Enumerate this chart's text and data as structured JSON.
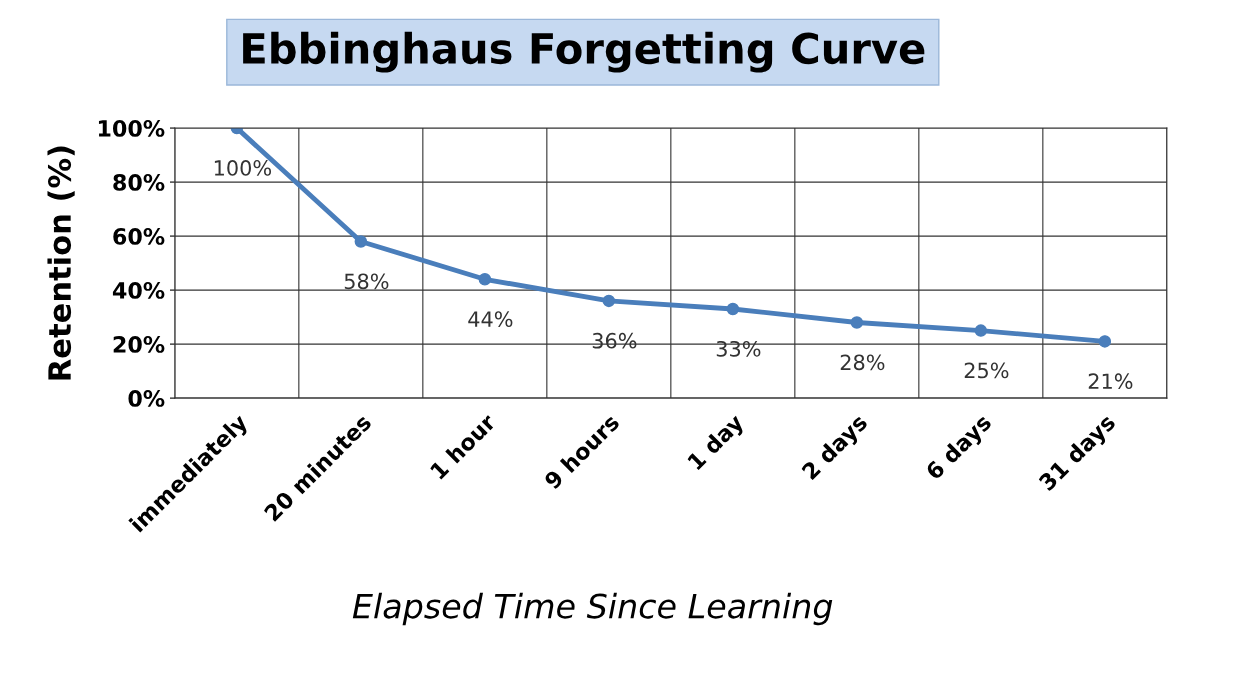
{
  "chart_data": {
    "type": "line",
    "title": "Ebbinghaus Forgetting Curve",
    "xlabel": "Elapsed Time Since Learning",
    "ylabel": "Retention (%)",
    "categories": [
      "immediately",
      "20 minutes",
      "1 hour",
      "9 hours",
      "1 day",
      "2 days",
      "6 days",
      "31 days"
    ],
    "series": [
      {
        "color": "#4a7ebb",
        "values": [
          100,
          58,
          44,
          36,
          33,
          28,
          25,
          21
        ],
        "value_labels": [
          "100%",
          "58%",
          "44%",
          "36%",
          "33%",
          "28%",
          "25%",
          "21%"
        ]
      }
    ],
    "ylim": [
      0,
      100
    ],
    "yticks": [
      {
        "value": 0,
        "label": "0%"
      },
      {
        "value": 20,
        "label": "20%"
      },
      {
        "value": 40,
        "label": "40%"
      },
      {
        "value": 60,
        "label": "60%"
      },
      {
        "value": 80,
        "label": "80%"
      },
      {
        "value": 100,
        "label": "100%"
      }
    ],
    "grid": true,
    "marker": "circle",
    "line_style": "solid",
    "legend": false
  }
}
